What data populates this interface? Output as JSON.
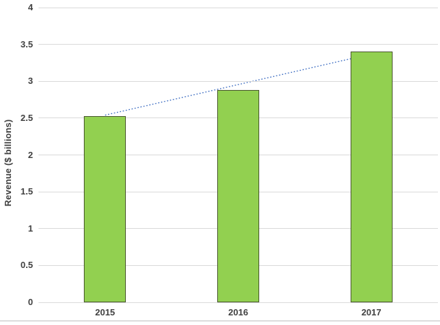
{
  "chart_data": {
    "type": "bar",
    "title": "",
    "categories": [
      "2015",
      "2016",
      "2017"
    ],
    "values": [
      2.53,
      2.88,
      3.4
    ],
    "xlabel": "",
    "ylabel": "Revenue ($ billions)",
    "ylim": [
      0,
      4
    ],
    "ytick_step": 0.5,
    "ytick_labels": [
      "0",
      "0.5",
      "1",
      "1.5",
      "2",
      "2.5",
      "3",
      "3.5",
      "4"
    ],
    "grid": true,
    "legend": false,
    "trendline": {
      "type": "linear",
      "style": "dotted",
      "endpoints": [
        {
          "category": "2015",
          "value": 2.54
        },
        {
          "category": "2017",
          "value": 3.37
        }
      ]
    }
  },
  "colors": {
    "background": "#ffffff",
    "bar_fill": "#92d050",
    "bar_border": "#46542c",
    "gridline": "#d9d9d9",
    "trendline": "#4472c4",
    "axis_text": "#404040",
    "chart_bottom_border": "#dcdcdc"
  }
}
